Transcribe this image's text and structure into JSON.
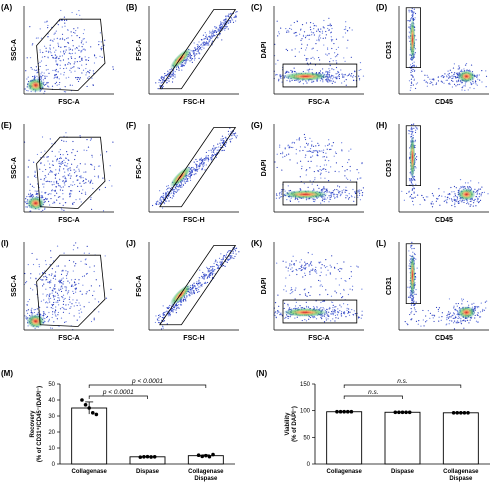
{
  "panels": [
    {
      "label": "(A)",
      "x_label": "FSC-A",
      "y_label": "SSC-A"
    },
    {
      "label": "(B)",
      "x_label": "FSC-H",
      "y_label": "FSC-A"
    },
    {
      "label": "(C)",
      "x_label": "FSC-A",
      "y_label": "DAPI"
    },
    {
      "label": "(D)",
      "x_label": "CD45",
      "y_label": "CD31"
    },
    {
      "label": "(E)",
      "x_label": "FSC-A",
      "y_label": "SSC-A"
    },
    {
      "label": "(F)",
      "x_label": "FSC-H",
      "y_label": "FSC-A"
    },
    {
      "label": "(G)",
      "x_label": "FSC-A",
      "y_label": "DAPI"
    },
    {
      "label": "(H)",
      "x_label": "CD45",
      "y_label": "CD31"
    },
    {
      "label": "(I)",
      "x_label": "FSC-A",
      "y_label": "SSC-A"
    },
    {
      "label": "(J)",
      "x_label": "FSC-H",
      "y_label": "FSC-A"
    },
    {
      "label": "(K)",
      "x_label": "FSC-A",
      "y_label": "DAPI"
    },
    {
      "label": "(L)",
      "x_label": "CD45",
      "y_label": "CD31"
    }
  ],
  "chart_data": [
    {
      "type": "bar",
      "panel_label": "(M)",
      "ylabel": [
        "Recovery",
        "(% of CD31⁺/CD45⁻/DAPI⁻)"
      ],
      "categories": [
        [
          "Collagenase"
        ],
        [
          "Dispase"
        ],
        [
          "Collagenase",
          "Dispase"
        ]
      ],
      "values": [
        35,
        4.5,
        5.2
      ],
      "errors": [
        3.8,
        0.1,
        0.5
      ],
      "points": [
        [
          40,
          37,
          35,
          32,
          31
        ],
        [
          4.3,
          4.5,
          4.6,
          4.4,
          4.5
        ],
        [
          5.5,
          4.8,
          5.2,
          4.6,
          5.9
        ]
      ],
      "ylim": [
        0,
        50
      ],
      "yticks": [
        0,
        10,
        20,
        30,
        40,
        50
      ],
      "annotations": [
        {
          "text": "p < 0.0001",
          "from": 0,
          "to": 1
        },
        {
          "text": "p < 0.0001",
          "from": 0,
          "to": 2
        }
      ]
    },
    {
      "type": "bar",
      "panel_label": "(N)",
      "ylabel": [
        "Viability",
        "(% of DAPI⁻)"
      ],
      "categories": [
        [
          "Collagenase"
        ],
        [
          "Dispase"
        ],
        [
          "Collagenase",
          "Dispase"
        ]
      ],
      "values": [
        98,
        97,
        96
      ],
      "errors": [
        0.5,
        0.5,
        0.5
      ],
      "points": [
        [
          98,
          98,
          98,
          98,
          98
        ],
        [
          97,
          97,
          97,
          97,
          97
        ],
        [
          96,
          96,
          96,
          96,
          96
        ]
      ],
      "ylim": [
        0,
        150
      ],
      "yticks": [
        0,
        50,
        100,
        150
      ],
      "annotations": [
        {
          "text": "n.s.",
          "from": 0,
          "to": 1
        },
        {
          "text": "n.s.",
          "from": 0,
          "to": 2
        }
      ]
    }
  ]
}
